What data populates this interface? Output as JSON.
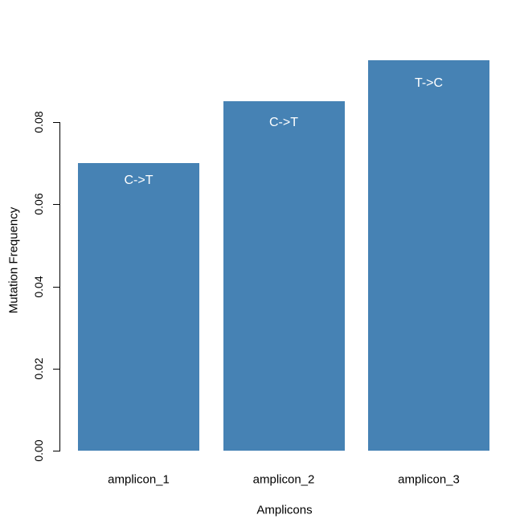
{
  "chart_data": {
    "type": "bar",
    "title": "",
    "categories": [
      "amplicon_1",
      "amplicon_2",
      "amplicon_3"
    ],
    "values": [
      0.07,
      0.085,
      0.095
    ],
    "bar_labels": [
      "C->T",
      "C->T",
      "T->C"
    ],
    "xlabel": "Amplicons",
    "ylabel": "Mutation Frequency",
    "yticks": [
      "0.00",
      "0.02",
      "0.04",
      "0.06",
      "0.08"
    ],
    "ytick_values": [
      0.0,
      0.02,
      0.04,
      0.06,
      0.08
    ],
    "ylim": [
      0,
      0.0988
    ],
    "grid": false,
    "legend": null,
    "colors": {
      "bar_fill": "#4682B4",
      "bar_label_text": "#FFFFFF",
      "axis": "#000000",
      "background": "#FFFFFF"
    }
  }
}
